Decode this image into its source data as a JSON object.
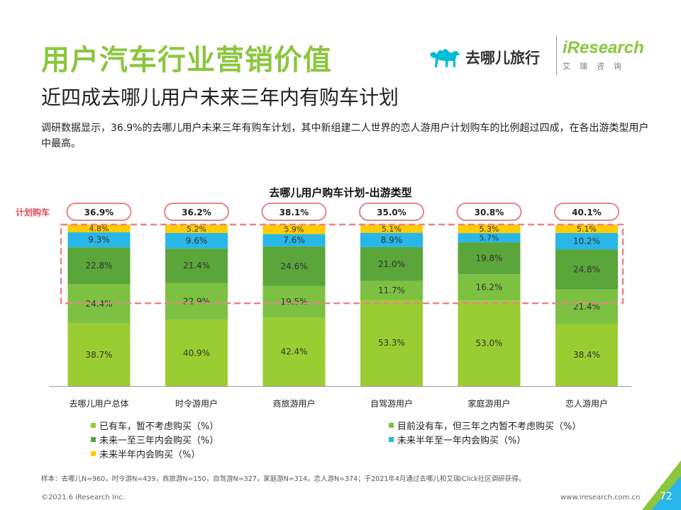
{
  "header": {
    "title": "用户汽车行业营销价值",
    "subtitle": "近四成去哪儿用户未来三年内有购车计划",
    "description": "调研数据显示，36.9%的去哪儿用户未来三年有购车计划，其中新组建二人世界的恋人游用户计划购车的比例超过四成，在各出游类型用户中最高。"
  },
  "logos": {
    "qunar_name": "去哪儿旅行",
    "iresearch_name": "iResearch",
    "iresearch_cn": "艾瑞咨询"
  },
  "chart_data": {
    "type": "bar",
    "stacked": true,
    "title": "去哪儿用户购车计划-出游类型",
    "categories": [
      "去哪儿用户总体",
      "时令游用户",
      "商旅游用户",
      "自驾游用户",
      "家庭游用户",
      "恋人游用户"
    ],
    "series": [
      {
        "name": "已有车，暂不考虑购买（%）",
        "color": "#9acd32",
        "values": [
          38.7,
          40.9,
          42.4,
          53.3,
          53.0,
          38.4
        ]
      },
      {
        "name": "目前没有车，但三年之内暂不考虑购买（%）",
        "color": "#7cc142",
        "values": [
          24.4,
          22.9,
          19.5,
          11.7,
          16.2,
          21.4
        ]
      },
      {
        "name": "未来一至三年内会购买（%）",
        "color": "#5aa63a",
        "values": [
          22.8,
          21.4,
          24.6,
          21.0,
          19.8,
          24.8
        ]
      },
      {
        "name": "未来半年至一年内会购买（%）",
        "color": "#29b6e8",
        "values": [
          9.3,
          9.6,
          7.6,
          8.9,
          5.7,
          10.2
        ]
      },
      {
        "name": "未来半年内会购买（%）",
        "color": "#ffcc00",
        "values": [
          4.8,
          5.2,
          5.9,
          5.1,
          5.3,
          5.1
        ]
      }
    ],
    "plan_label": "计划购车",
    "plan_values": [
      "36.9%",
      "36.2%",
      "38.1%",
      "35.0%",
      "30.8%",
      "40.1%"
    ],
    "ylim": [
      0,
      100
    ],
    "highlight_color": "#e8838d"
  },
  "legend": [
    {
      "label": "已有车，暂不考虑购买（%）",
      "color": "#9acd32"
    },
    {
      "label": "目前没有车，但三年之内暂不考虑购买（%）",
      "color": "#7cc142"
    },
    {
      "label": "未来一至三年内会购买（%）",
      "color": "#5aa63a"
    },
    {
      "label": "未来半年至一年内会购买（%）",
      "color": "#29b6e8"
    },
    {
      "label": "未来半年内会购买（%）",
      "color": "#ffcc00"
    }
  ],
  "footnote": "样本：去哪儿N=960，时令游N=439，商旅游N=150，自驾游N=327，家庭游N=314，恋人游N=374；于2021年4月通过去哪儿和艾瑞iClick社区调研获得。",
  "footer": {
    "copyright": "©2021.6 iResearch Inc.",
    "website": "www.iresearch.com.cn",
    "page_number": "72"
  },
  "colors": {
    "title_green": "#8cc63f",
    "qunar_teal": "#00bcd4",
    "corner_green": "#8cc63f",
    "corner_blue": "#29b6e8"
  }
}
